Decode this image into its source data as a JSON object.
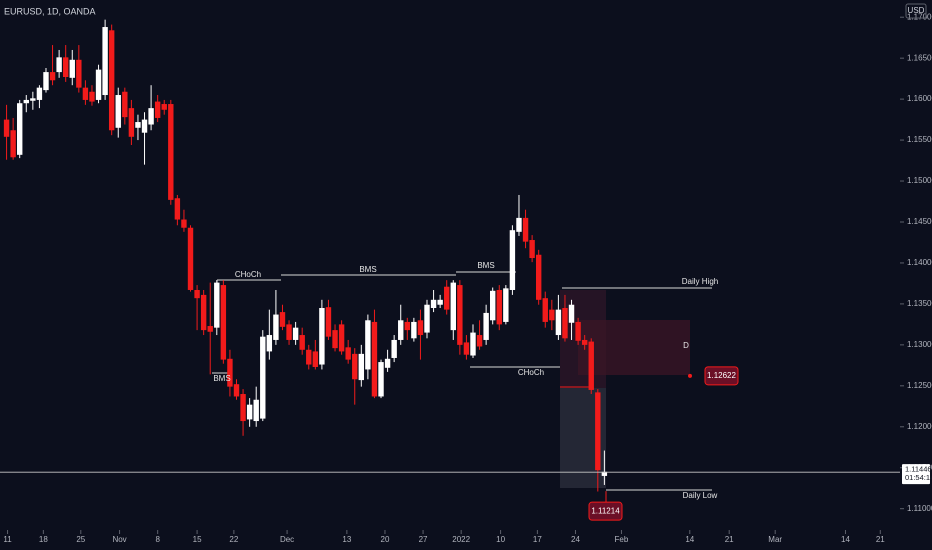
{
  "header": {
    "symbol": "EURUSD, 1D, OANDA",
    "currency": "USD"
  },
  "chart_data": {
    "type": "candlestick",
    "up_color": "#ffffff",
    "down_color": "#f21b1b",
    "ohlc": [
      [
        1.1575,
        1.1593,
        1.1526,
        1.1554
      ],
      [
        1.1562,
        1.1577,
        1.1526,
        1.1529
      ],
      [
        1.1532,
        1.1599,
        1.1528,
        1.1595
      ],
      [
        1.1595,
        1.1605,
        1.1584,
        1.1599
      ],
      [
        1.1598,
        1.1609,
        1.1587,
        1.1601
      ],
      [
        1.1599,
        1.1617,
        1.1589,
        1.1614
      ],
      [
        1.1611,
        1.1638,
        1.1608,
        1.1633
      ],
      [
        1.1633,
        1.1666,
        1.1617,
        1.1623
      ],
      [
        1.1633,
        1.166,
        1.1626,
        1.1651
      ],
      [
        1.1651,
        1.1666,
        1.1621,
        1.1627
      ],
      [
        1.1626,
        1.166,
        1.1617,
        1.1648
      ],
      [
        1.1648,
        1.1666,
        1.1608,
        1.1614
      ],
      [
        1.1614,
        1.1623,
        1.1593,
        1.1599
      ],
      [
        1.1609,
        1.1617,
        1.1592,
        1.1597
      ],
      [
        1.1599,
        1.1642,
        1.1595,
        1.1636
      ],
      [
        1.1605,
        1.1697,
        1.1599,
        1.1688
      ],
      [
        1.1684,
        1.1691,
        1.1556,
        1.1562
      ],
      [
        1.1565,
        1.1614,
        1.1553,
        1.1605
      ],
      [
        1.1609,
        1.1614,
        1.1569,
        1.1578
      ],
      [
        1.1589,
        1.1599,
        1.1544,
        1.1554
      ],
      [
        1.1565,
        1.1581,
        1.155,
        1.1572
      ],
      [
        1.1559,
        1.1584,
        1.152,
        1.1575
      ],
      [
        1.1569,
        1.1617,
        1.1562,
        1.1589
      ],
      [
        1.1597,
        1.1605,
        1.1572,
        1.1577
      ],
      [
        1.1594,
        1.1599,
        1.1581,
        1.1587
      ],
      [
        1.1594,
        1.1599,
        1.1471,
        1.1477
      ],
      [
        1.1479,
        1.1483,
        1.1446,
        1.1453
      ],
      [
        1.1453,
        1.1465,
        1.1438,
        1.1443
      ],
      [
        1.1443,
        1.1446,
        1.1365,
        1.1367
      ],
      [
        1.1367,
        1.1373,
        1.1318,
        1.1357
      ],
      [
        1.1361,
        1.1367,
        1.1312,
        1.1318
      ],
      [
        1.1323,
        1.1376,
        1.1264,
        1.1316
      ],
      [
        1.1321,
        1.1379,
        1.1312,
        1.1376
      ],
      [
        1.1373,
        1.1379,
        1.1277,
        1.1282
      ],
      [
        1.1283,
        1.1294,
        1.1237,
        1.1249
      ],
      [
        1.1252,
        1.1258,
        1.1233,
        1.1237
      ],
      [
        1.124,
        1.1246,
        1.1189,
        1.1207
      ],
      [
        1.1209,
        1.1235,
        1.12,
        1.1227
      ],
      [
        1.1207,
        1.1249,
        1.12,
        1.1233
      ],
      [
        1.121,
        1.1318,
        1.1207,
        1.131
      ],
      [
        1.1292,
        1.1343,
        1.1282,
        1.1312
      ],
      [
        1.1306,
        1.1367,
        1.13,
        1.1337
      ],
      [
        1.134,
        1.1349,
        1.1318,
        1.1322
      ],
      [
        1.1325,
        1.133,
        1.13,
        1.1306
      ],
      [
        1.1306,
        1.1328,
        1.13,
        1.1321
      ],
      [
        1.1312,
        1.1321,
        1.1288,
        1.1294
      ],
      [
        1.1294,
        1.13,
        1.127,
        1.1276
      ],
      [
        1.1292,
        1.1306,
        1.127,
        1.1273
      ],
      [
        1.1276,
        1.1355,
        1.127,
        1.1345
      ],
      [
        1.1346,
        1.1355,
        1.1306,
        1.131
      ],
      [
        1.1318,
        1.1325,
        1.1292,
        1.1296
      ],
      [
        1.1325,
        1.133,
        1.1288,
        1.1292
      ],
      [
        1.1297,
        1.1306,
        1.1277,
        1.1282
      ],
      [
        1.1289,
        1.1296,
        1.1227,
        1.1258
      ],
      [
        1.1257,
        1.13,
        1.1249,
        1.1289
      ],
      [
        1.127,
        1.1337,
        1.1258,
        1.133
      ],
      [
        1.1328,
        1.1343,
        1.1235,
        1.1237
      ],
      [
        1.1237,
        1.1282,
        1.1235,
        1.1279
      ],
      [
        1.1272,
        1.1294,
        1.1267,
        1.1283
      ],
      [
        1.1284,
        1.1312,
        1.1279,
        1.1306
      ],
      [
        1.1306,
        1.1349,
        1.13,
        1.133
      ],
      [
        1.1328,
        1.1333,
        1.1306,
        1.1318
      ],
      [
        1.1308,
        1.1333,
        1.1304,
        1.1328
      ],
      [
        1.133,
        1.1343,
        1.1282,
        1.1312
      ],
      [
        1.1315,
        1.1355,
        1.1308,
        1.1349
      ],
      [
        1.1345,
        1.1367,
        1.134,
        1.1355
      ],
      [
        1.1349,
        1.1361,
        1.1345,
        1.1355
      ],
      [
        1.1371,
        1.1379,
        1.1337,
        1.1343
      ],
      [
        1.1318,
        1.1379,
        1.1306,
        1.1376
      ],
      [
        1.1373,
        1.1379,
        1.1288,
        1.13
      ],
      [
        1.1303,
        1.1312,
        1.1282,
        1.1288
      ],
      [
        1.1287,
        1.1325,
        1.1284,
        1.1315
      ],
      [
        1.1312,
        1.133,
        1.1294,
        1.1298
      ],
      [
        1.1306,
        1.1349,
        1.13,
        1.1339
      ],
      [
        1.133,
        1.137,
        1.1325,
        1.1366
      ],
      [
        1.1367,
        1.1373,
        1.1318,
        1.1325
      ],
      [
        1.1328,
        1.1373,
        1.1325,
        1.1369
      ],
      [
        1.1367,
        1.1446,
        1.1361,
        1.144
      ],
      [
        1.1438,
        1.1483,
        1.1433,
        1.1455
      ],
      [
        1.1455,
        1.1465,
        1.1418,
        1.1426
      ],
      [
        1.1428,
        1.1434,
        1.1401,
        1.1406
      ],
      [
        1.141,
        1.1416,
        1.1349,
        1.1355
      ],
      [
        1.1357,
        1.1365,
        1.1321,
        1.1328
      ],
      [
        1.1343,
        1.1355,
        1.1318,
        1.133
      ],
      [
        1.1312,
        1.1361,
        1.1306,
        1.1343
      ],
      [
        1.1345,
        1.1361,
        1.1304,
        1.1308
      ],
      [
        1.1327,
        1.1355,
        1.1306,
        1.1349
      ],
      [
        1.1328,
        1.1333,
        1.13,
        1.1305
      ],
      [
        1.1306,
        1.1312,
        1.1294,
        1.13
      ],
      [
        1.1304,
        1.1308,
        1.124,
        1.1245
      ],
      [
        1.1242,
        1.1246,
        1.1121,
        1.1147
      ],
      [
        1.114,
        1.1171,
        1.1129,
        1.1145
      ]
    ],
    "xlim": [
      -1,
      136
    ],
    "xticks": [
      {
        "value": 0.15,
        "label": "11"
      },
      {
        "value": 5.6,
        "label": "18"
      },
      {
        "value": 11.3,
        "label": "25"
      },
      {
        "value": 17.2,
        "label": "Nov"
      },
      {
        "value": 23,
        "label": "8"
      },
      {
        "value": 29,
        "label": "15"
      },
      {
        "value": 34.6,
        "label": "22"
      },
      {
        "value": 42.7,
        "label": "Dec"
      },
      {
        "value": 51.8,
        "label": "13"
      },
      {
        "value": 57.6,
        "label": "20"
      },
      {
        "value": 63.4,
        "label": "27"
      },
      {
        "value": 69.2,
        "label": "2022"
      },
      {
        "value": 75.2,
        "label": "10"
      },
      {
        "value": 80.8,
        "label": "17"
      },
      {
        "value": 86.6,
        "label": "24"
      },
      {
        "value": 93.6,
        "label": "Feb"
      },
      {
        "value": 104,
        "label": "14"
      },
      {
        "value": 110,
        "label": "21"
      },
      {
        "value": 117,
        "label": "Mar"
      },
      {
        "value": 127.7,
        "label": "14"
      },
      {
        "value": 133,
        "label": "21"
      }
    ],
    "ylim": [
      1.1074,
      1.1721
    ],
    "yticks": [
      {
        "value": 1.11,
        "label": "1.11000"
      },
      {
        "value": 1.115,
        "label": "1.11500"
      },
      {
        "value": 1.12,
        "label": "1.12000"
      },
      {
        "value": 1.125,
        "label": "1.12500"
      },
      {
        "value": 1.13,
        "label": "1.13000"
      },
      {
        "value": 1.135,
        "label": "1.13500"
      },
      {
        "value": 1.14,
        "label": "1.14000"
      },
      {
        "value": 1.145,
        "label": "1.14500"
      },
      {
        "value": 1.15,
        "label": "1.15000"
      },
      {
        "value": 1.155,
        "label": "1.15500"
      },
      {
        "value": 1.16,
        "label": "1.16000"
      },
      {
        "value": 1.165,
        "label": "1.16500"
      },
      {
        "value": 1.17,
        "label": "1.17000"
      }
    ],
    "annotations": [
      "CHoCh",
      "BMS",
      "BMS",
      "BMS",
      "CHoCh",
      "Daily High",
      "Daily Low",
      "D"
    ],
    "price_labels": [
      {
        "value": 1.12622,
        "label": "1.12622"
      },
      {
        "value": 1.11214,
        "label": "1.11214"
      }
    ],
    "last_price": {
      "value": 1.11446,
      "label": "1.11446"
    },
    "countdown": "01:54:14"
  }
}
